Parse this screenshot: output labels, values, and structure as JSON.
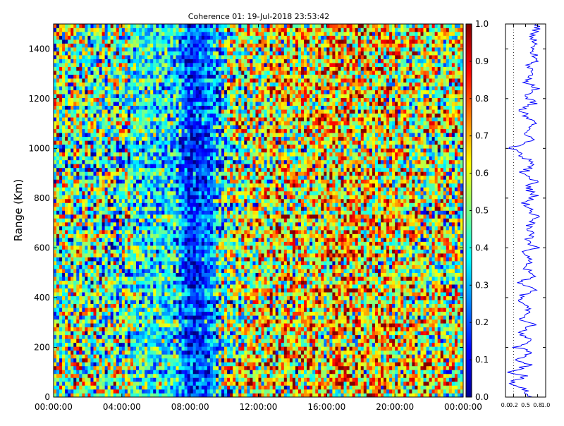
{
  "title": "Coherence 01: 19-Jul-2018 23:53:42",
  "colors": {
    "colormap": "jet",
    "profile_line": "#0000ff",
    "background": "#ffffff",
    "axis": "#000000"
  },
  "chart_data": [
    {
      "type": "heatmap",
      "title": "Coherence 01: 19-Jul-2018 23:53:42",
      "xlabel": "",
      "ylabel": "Range (Km)",
      "x_tick_labels": [
        "00:00:00",
        "04:00:00",
        "08:00:00",
        "12:00:00",
        "16:00:00",
        "20:00:00",
        "00:00:00"
      ],
      "xlim_hours": [
        0,
        24
      ],
      "y_ticks": [
        0,
        200,
        400,
        600,
        800,
        1000,
        1200,
        1400
      ],
      "ylim": [
        0,
        1500
      ],
      "colorbar": {
        "colormap": "jet",
        "ticks": [
          0.0,
          0.1,
          0.2,
          0.3,
          0.4,
          0.5,
          0.6,
          0.7,
          0.8,
          0.9,
          1.0
        ],
        "tick_labels": [
          "0.0",
          "0.1",
          "0.2",
          "0.3",
          "0.4",
          "0.5",
          "0.6",
          "0.7",
          "0.8",
          "0.9",
          "1.0"
        ],
        "range": [
          0,
          1
        ]
      },
      "time_profile_hours": [
        0,
        1,
        2,
        3,
        4,
        5,
        6,
        7,
        8,
        9,
        10,
        11,
        12,
        13,
        14,
        15,
        16,
        17,
        18,
        19,
        20,
        21,
        22,
        23,
        24
      ],
      "time_profile_mean_coherence": [
        0.5,
        0.5,
        0.48,
        0.47,
        0.47,
        0.4,
        0.38,
        0.38,
        0.15,
        0.22,
        0.45,
        0.55,
        0.6,
        0.62,
        0.62,
        0.63,
        0.65,
        0.68,
        0.66,
        0.64,
        0.62,
        0.6,
        0.58,
        0.56,
        0.55
      ],
      "grid": false,
      "note_pattern": "random per-cell noise around time profile"
    },
    {
      "type": "line",
      "title": "",
      "xlabel": "",
      "ylabel": "",
      "x_tick_labels": [
        "0.0",
        "0.2",
        "0.5",
        "0.8",
        "1.0"
      ],
      "xlim": [
        0,
        1
      ],
      "ylim": [
        0,
        1500
      ],
      "dotted_reference_x": 0.2,
      "range_km": [
        0,
        30,
        60,
        85,
        100,
        130,
        150,
        180,
        200,
        230,
        260,
        290,
        310,
        340,
        370,
        400,
        430,
        460,
        490,
        520,
        550,
        580,
        600,
        630,
        660,
        690,
        720,
        750,
        780,
        810,
        840,
        870,
        900,
        930,
        960,
        1000,
        1030,
        1060,
        1090,
        1120,
        1150,
        1180,
        1210,
        1240,
        1270,
        1300,
        1330,
        1360,
        1390,
        1420,
        1450,
        1480,
        1500
      ],
      "coherence": [
        0.7,
        0.45,
        0.15,
        0.55,
        0.1,
        0.6,
        0.35,
        0.7,
        0.25,
        0.65,
        0.3,
        0.75,
        0.4,
        0.65,
        0.45,
        0.3,
        0.7,
        0.4,
        0.72,
        0.45,
        0.68,
        0.35,
        0.75,
        0.5,
        0.7,
        0.55,
        0.78,
        0.6,
        0.5,
        0.72,
        0.55,
        0.75,
        0.4,
        0.7,
        0.5,
        0.12,
        0.65,
        0.45,
        0.7,
        0.6,
        0.38,
        0.72,
        0.55,
        0.8,
        0.45,
        0.7,
        0.55,
        0.82,
        0.65,
        0.78,
        0.6,
        0.8,
        0.7
      ]
    }
  ]
}
